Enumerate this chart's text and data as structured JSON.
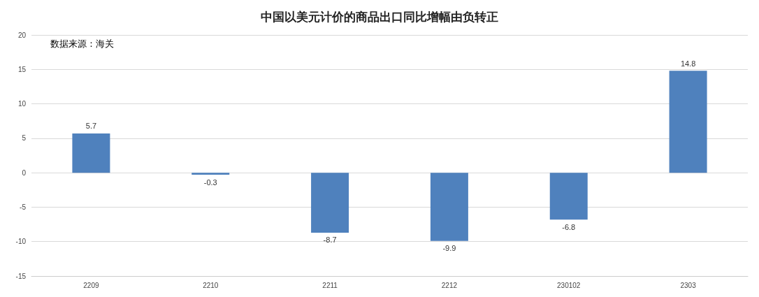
{
  "chart_data": {
    "type": "bar",
    "title": "中国以美元计价的商品出口同比增幅由负转正",
    "annotations": [
      "数据来源：海关"
    ],
    "categories": [
      "2209",
      "2210",
      "2211",
      "2212",
      "230102",
      "2303"
    ],
    "values": [
      5.7,
      -0.3,
      -8.7,
      -9.9,
      -6.8,
      14.8
    ],
    "color": "#4f81bd",
    "ylim": [
      -15,
      20
    ],
    "yticks": [
      -15,
      -10,
      -5,
      0,
      5,
      10,
      15,
      20
    ],
    "grid": "y",
    "data_labels": true
  }
}
